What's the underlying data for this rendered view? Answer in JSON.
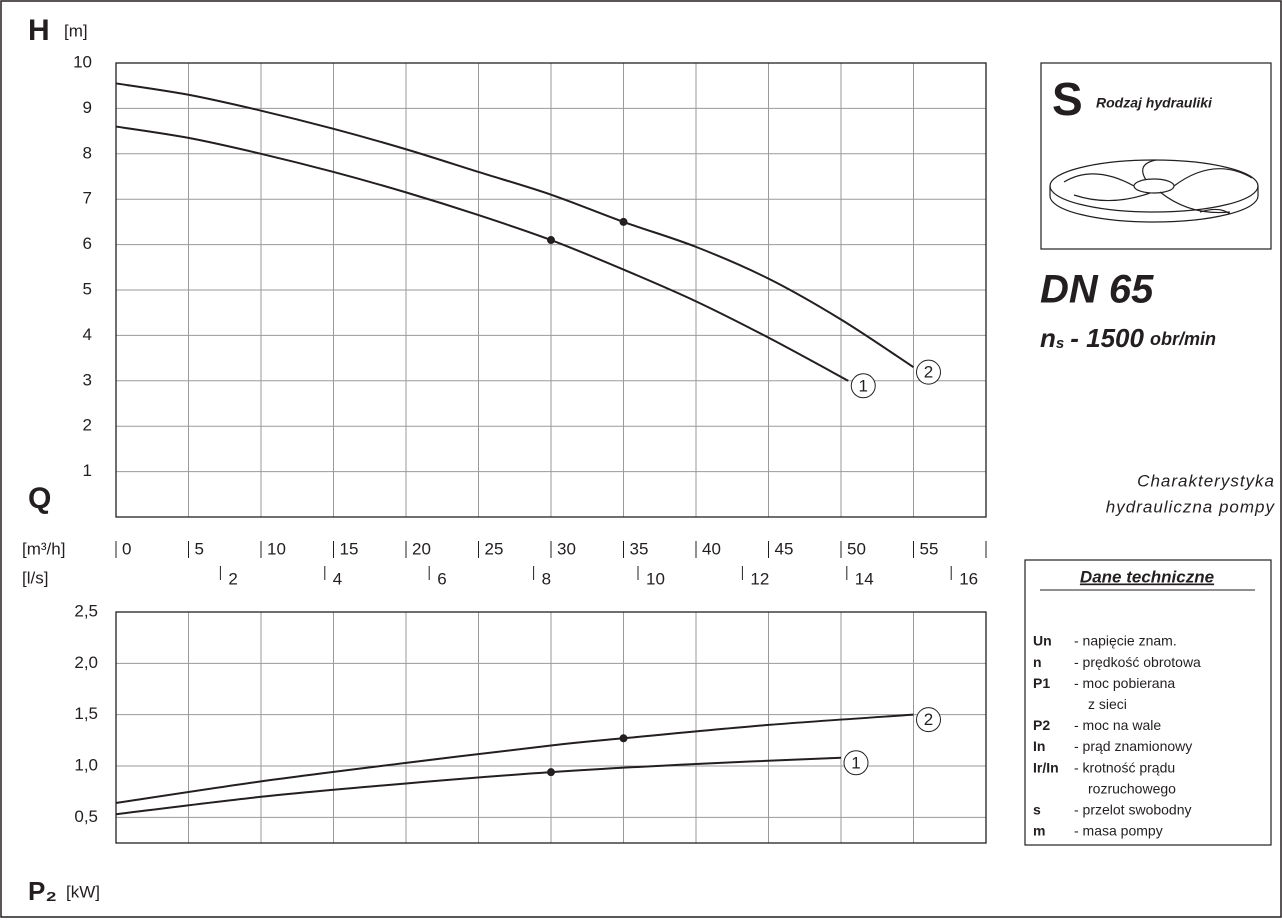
{
  "chart_data": [
    {
      "type": "line",
      "y_label": "H",
      "y_unit": "[m]",
      "x_label": "Q",
      "x_unit": "[m³/h]",
      "x2_unit": "[l/s]",
      "xlim": [
        0,
        60
      ],
      "xticks": [
        0,
        5,
        10,
        15,
        20,
        25,
        30,
        35,
        40,
        45,
        50,
        55
      ],
      "x2ticks": [
        {
          "value": 7.2,
          "label": "2"
        },
        {
          "value": 14.4,
          "label": "4"
        },
        {
          "value": 21.6,
          "label": "6"
        },
        {
          "value": 28.8,
          "label": "8"
        },
        {
          "value": 36,
          "label": "10"
        },
        {
          "value": 43.2,
          "label": "12"
        },
        {
          "value": 50.4,
          "label": "14"
        },
        {
          "value": 57.6,
          "label": "16"
        }
      ],
      "ylim": [
        0,
        10
      ],
      "yticks": [
        1,
        2,
        3,
        4,
        5,
        6,
        7,
        8,
        9,
        10
      ],
      "grid": true,
      "series": [
        {
          "name": "1",
          "color": "#231f20",
          "x": [
            0,
            5,
            10,
            15,
            20,
            25,
            30,
            35,
            40,
            45,
            50.5
          ],
          "values": [
            8.6,
            8.35,
            8.0,
            7.6,
            7.15,
            6.65,
            6.1,
            5.45,
            4.75,
            3.95,
            3.0
          ],
          "points_x": [
            30
          ],
          "points": [
            6.1
          ]
        },
        {
          "name": "2",
          "color": "#231f20",
          "x": [
            0,
            5,
            10,
            15,
            20,
            25,
            30,
            35,
            40,
            45,
            50,
            55
          ],
          "values": [
            9.55,
            9.3,
            8.95,
            8.55,
            8.1,
            7.6,
            7.1,
            6.5,
            5.95,
            5.25,
            4.35,
            3.3
          ],
          "points_x": [
            35
          ],
          "points": [
            6.5
          ]
        }
      ]
    },
    {
      "type": "line",
      "y_label": "P₂",
      "y_unit": "[kW]",
      "xlim": [
        0,
        60
      ],
      "xticks": [
        0,
        5,
        10,
        15,
        20,
        25,
        30,
        35,
        40,
        45,
        50,
        55
      ],
      "ylim": [
        0.25,
        2.5
      ],
      "yticks": [
        {
          "value": 0.5,
          "label": "0,5"
        },
        {
          "value": 1.0,
          "label": "1,0"
        },
        {
          "value": 1.5,
          "label": "1,5"
        },
        {
          "value": 2.0,
          "label": "2,0"
        },
        {
          "value": 2.5,
          "label": "2,5"
        }
      ],
      "grid": true,
      "series": [
        {
          "name": "1",
          "color": "#231f20",
          "x": [
            0,
            10,
            20,
            30,
            40,
            50
          ],
          "values": [
            0.53,
            0.7,
            0.83,
            0.94,
            1.02,
            1.08
          ],
          "points_x": [
            30
          ],
          "points": [
            0.94
          ]
        },
        {
          "name": "2",
          "color": "#231f20",
          "x": [
            0,
            10,
            20,
            30,
            35,
            45,
            55
          ],
          "values": [
            0.64,
            0.85,
            1.03,
            1.2,
            1.27,
            1.4,
            1.5
          ],
          "points_x": [
            35
          ],
          "points": [
            1.27
          ]
        }
      ]
    }
  ],
  "info": {
    "letter": "S",
    "hydraulics": "Rodzaj hydrauliki",
    "dn": "DN 65",
    "ns_n": "n",
    "ns_sub": "s",
    "ns_value": "- 1500",
    "ns_unit": "obr/min",
    "caption": [
      "Charakterystyka",
      "hydrauliczna pompy"
    ],
    "tech_title": "Dane techniczne",
    "tech_rows": [
      [
        "Un",
        "- napięcie znam."
      ],
      [
        "n",
        "- prędkość obrotowa"
      ],
      [
        "P1",
        "- moc pobierana"
      ],
      [
        null,
        "z sieci"
      ],
      [
        "P2",
        "- moc na wale"
      ],
      [
        "In",
        "- prąd znamionowy"
      ],
      [
        "Ir/In",
        "- krotność prądu"
      ],
      [
        null,
        "rozruchowego"
      ],
      [
        "s",
        "- przelot swobodny"
      ],
      [
        "m",
        "- masa pompy"
      ]
    ]
  }
}
